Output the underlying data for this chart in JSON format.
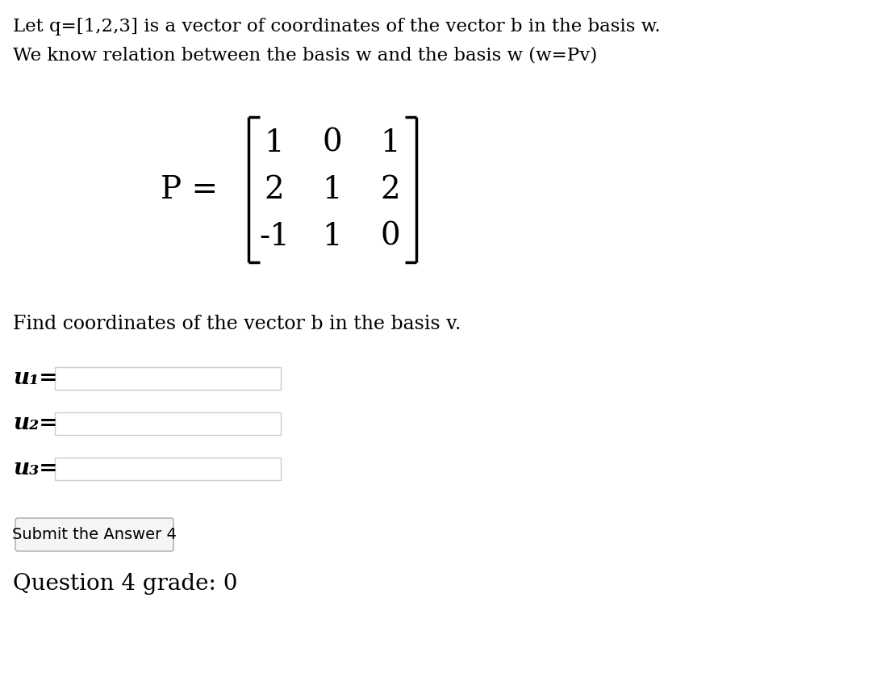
{
  "line1": "Let q=[1,2,3] is a vector of coordinates of the vector b in the basis w.",
  "line2": "We know relation between the basis w and the basis w (w=Pv)",
  "matrix": [
    [
      1,
      0,
      1
    ],
    [
      2,
      1,
      2
    ],
    [
      -1,
      1,
      0
    ]
  ],
  "find_text": "Find coordinates of the vector b in the basis v.",
  "input_labels": [
    "u₁=",
    "u₂=",
    "u₃="
  ],
  "button_text": "Submit the Answer 4",
  "grade_text": "Question 4 grade: 0",
  "bg_color": "#ffffff",
  "text_color": "#000000",
  "input_box_color": "#ffffff",
  "input_box_border": "#cccccc",
  "main_fontsize": 16.5,
  "matrix_fontsize": 28,
  "p_label_fontsize": 28,
  "input_label_fontsize": 20,
  "button_fontsize": 14,
  "grade_fontsize": 20,
  "find_fontsize": 17
}
